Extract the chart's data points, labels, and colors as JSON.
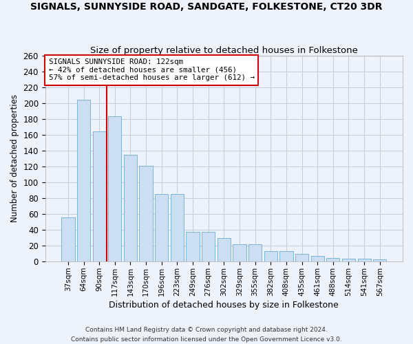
{
  "title": "SIGNALS, SUNNYSIDE ROAD, SANDGATE, FOLKESTONE, CT20 3DR",
  "subtitle": "Size of property relative to detached houses in Folkestone",
  "xlabel": "Distribution of detached houses by size in Folkestone",
  "ylabel": "Number of detached properties",
  "categories": [
    "37sqm",
    "64sqm",
    "90sqm",
    "117sqm",
    "143sqm",
    "170sqm",
    "196sqm",
    "223sqm",
    "249sqm",
    "276sqm",
    "302sqm",
    "329sqm",
    "355sqm",
    "382sqm",
    "408sqm",
    "435sqm",
    "461sqm",
    "488sqm",
    "514sqm",
    "541sqm",
    "567sqm"
  ],
  "values": [
    56,
    204,
    164,
    183,
    135,
    121,
    85,
    85,
    38,
    38,
    30,
    22,
    22,
    13,
    13,
    10,
    7,
    5,
    4,
    4,
    3
  ],
  "bar_color": "#ccdff2",
  "bar_edge_color": "#7ab3d9",
  "ref_line_x": 2.5,
  "ref_line_color": "#cc0000",
  "annotation_line1": "SIGNALS SUNNYSIDE ROAD: 122sqm",
  "annotation_line2": "← 42% of detached houses are smaller (456)",
  "annotation_line3": "57% of semi-detached houses are larger (612) →",
  "plot_bg": "#eef2fb",
  "fig_bg": "#eef2fb",
  "grid_color": "#c8cfdb",
  "ylim": [
    0,
    260
  ],
  "yticks": [
    0,
    20,
    40,
    60,
    80,
    100,
    120,
    140,
    160,
    180,
    200,
    220,
    240,
    260
  ],
  "footnote1": "Contains HM Land Registry data © Crown copyright and database right 2024.",
  "footnote2": "Contains public sector information licensed under the Open Government Licence v3.0."
}
